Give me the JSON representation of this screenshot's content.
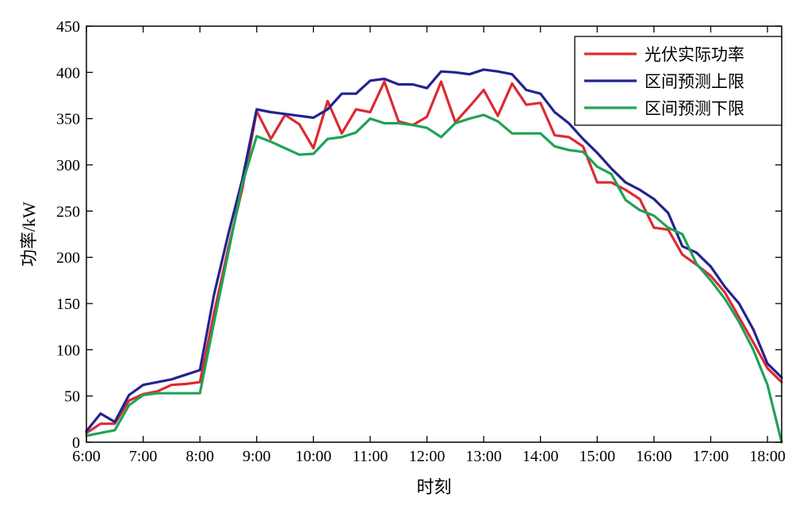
{
  "chart_data": {
    "type": "line",
    "xlabel": "时刻",
    "ylabel": "功率/kW",
    "xlim": [
      6.0,
      18.25
    ],
    "ylim": [
      0,
      450
    ],
    "x_ticks": [
      6,
      7,
      8,
      9,
      10,
      11,
      12,
      13,
      14,
      15,
      16,
      17,
      18
    ],
    "x_tick_labels": [
      "6:00",
      "7:00",
      "8:00",
      "9:00",
      "10:00",
      "11:00",
      "12:00",
      "13:00",
      "14:00",
      "15:00",
      "16:00",
      "17:00",
      "18:00"
    ],
    "y_ticks": [
      0,
      50,
      100,
      150,
      200,
      250,
      300,
      350,
      400,
      450
    ],
    "y_tick_labels": [
      "0",
      "50",
      "100",
      "150",
      "200",
      "250",
      "300",
      "350",
      "400",
      "450"
    ],
    "grid": false,
    "legend_position": "top-right",
    "series": [
      {
        "name": "光伏实际功率",
        "color": "#dd2a32",
        "x": [
          6.0,
          6.25,
          6.5,
          6.75,
          7.0,
          7.25,
          7.5,
          7.75,
          8.0,
          8.25,
          8.5,
          8.75,
          9.0,
          9.25,
          9.5,
          9.75,
          10.0,
          10.25,
          10.5,
          10.75,
          11.0,
          11.25,
          11.5,
          11.75,
          12.0,
          12.25,
          12.5,
          12.75,
          13.0,
          13.25,
          13.5,
          13.75,
          14.0,
          14.25,
          14.5,
          14.75,
          15.0,
          15.25,
          15.5,
          15.75,
          16.0,
          16.25,
          16.5,
          16.75,
          17.0,
          17.25,
          17.5,
          17.75,
          18.0,
          18.25
        ],
        "y": [
          10,
          20,
          20,
          45,
          52,
          55,
          62,
          63,
          65,
          140,
          210,
          275,
          358,
          328,
          354,
          344,
          318,
          369,
          334,
          360,
          357,
          390,
          347,
          343,
          352,
          390,
          346,
          363,
          381,
          353,
          388,
          365,
          367,
          332,
          330,
          320,
          281,
          281,
          273,
          263,
          232,
          230,
          203,
          192,
          180,
          162,
          135,
          108,
          80,
          65
        ]
      },
      {
        "name": "区间预测上限",
        "color": "#23238f",
        "x": [
          6.0,
          6.25,
          6.5,
          6.75,
          7.0,
          7.25,
          7.5,
          7.75,
          8.0,
          8.25,
          8.5,
          8.75,
          9.0,
          9.25,
          9.5,
          9.75,
          10.0,
          10.25,
          10.5,
          10.75,
          11.0,
          11.25,
          11.5,
          11.75,
          12.0,
          12.25,
          12.5,
          12.75,
          13.0,
          13.25,
          13.5,
          13.75,
          14.0,
          14.25,
          14.5,
          14.75,
          15.0,
          15.25,
          15.5,
          15.75,
          16.0,
          16.25,
          16.5,
          16.75,
          17.0,
          17.25,
          17.5,
          17.75,
          18.0,
          18.25
        ],
        "y": [
          12,
          31,
          22,
          51,
          62,
          65,
          68,
          73,
          78,
          160,
          225,
          285,
          360,
          357,
          355,
          353,
          351,
          360,
          377,
          377,
          391,
          393,
          387,
          387,
          383,
          401,
          400,
          398,
          403,
          401,
          398,
          381,
          377,
          357,
          345,
          328,
          313,
          296,
          281,
          273,
          263,
          248,
          212,
          205,
          190,
          168,
          150,
          122,
          85,
          70
        ]
      },
      {
        "name": "区间预测下限",
        "color": "#1fa356",
        "x": [
          6.0,
          6.25,
          6.5,
          6.75,
          7.0,
          7.25,
          7.5,
          7.75,
          8.0,
          8.25,
          8.5,
          8.75,
          9.0,
          9.25,
          9.5,
          9.75,
          10.0,
          10.25,
          10.5,
          10.75,
          11.0,
          11.25,
          11.5,
          11.75,
          12.0,
          12.25,
          12.5,
          12.75,
          13.0,
          13.25,
          13.5,
          13.75,
          14.0,
          14.25,
          14.5,
          14.75,
          15.0,
          15.25,
          15.5,
          15.75,
          16.0,
          16.25,
          16.5,
          16.75,
          17.0,
          17.25,
          17.5,
          17.75,
          18.0,
          18.25
        ],
        "y": [
          7,
          10,
          13,
          40,
          51,
          53,
          53,
          53,
          53,
          130,
          205,
          280,
          331,
          325,
          318,
          311,
          312,
          328,
          330,
          335,
          350,
          345,
          345,
          343,
          340,
          330,
          345,
          350,
          354,
          347,
          334,
          334,
          334,
          320,
          316,
          314,
          298,
          290,
          262,
          251,
          245,
          232,
          225,
          193,
          175,
          155,
          130,
          100,
          62,
          0
        ]
      }
    ]
  }
}
